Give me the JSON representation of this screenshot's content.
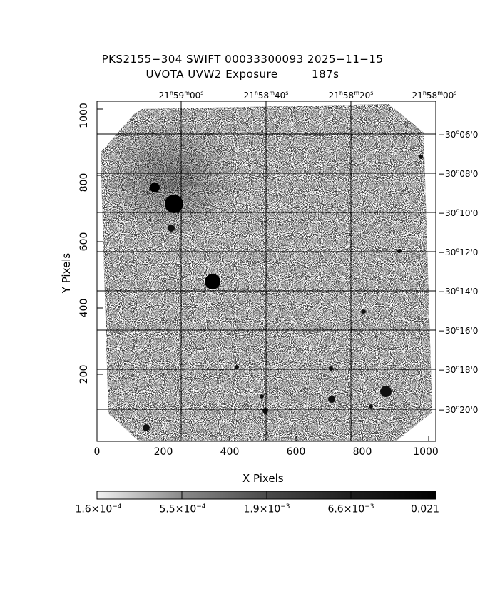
{
  "header": {
    "title_line1": "PKS2155−304 SWIFT 00033300093 2025−11−15",
    "title_line2": "UVOTA UVW2 Exposure         187s"
  },
  "axes": {
    "x_label": "X Pixels",
    "y_label": "Y Pixels",
    "x_ticks": [
      "0",
      "200",
      "400",
      "600",
      "800",
      "1000"
    ],
    "y_ticks": [
      "200",
      "400",
      "600",
      "800",
      "1000"
    ]
  },
  "ra_ticks": [
    {
      "h": "21",
      "m": "59",
      "s": "00"
    },
    {
      "h": "21",
      "m": "58",
      "s": "40"
    },
    {
      "h": "21",
      "m": "58",
      "s": "20"
    },
    {
      "h": "21",
      "m": "58",
      "s": "00"
    }
  ],
  "dec_ticks": [
    {
      "d": "−30",
      "m": "06'0"
    },
    {
      "d": "−30",
      "m": "08'0"
    },
    {
      "d": "−30",
      "m": "10'0"
    },
    {
      "d": "−30",
      "m": "12'0"
    },
    {
      "d": "−30",
      "m": "14'0"
    },
    {
      "d": "−30",
      "m": "16'0"
    },
    {
      "d": "−30",
      "m": "18'0"
    },
    {
      "d": "−30",
      "m": "20'0"
    }
  ],
  "colorbar": {
    "labels": [
      {
        "mant": "1.6×10",
        "exp": "−4"
      },
      {
        "mant": "5.5×10",
        "exp": "−4"
      },
      {
        "mant": "1.9×10",
        "exp": "−3"
      },
      {
        "mant": "6.6×10",
        "exp": "−3"
      },
      {
        "mant": "0.021",
        "exp": ""
      }
    ]
  }
}
